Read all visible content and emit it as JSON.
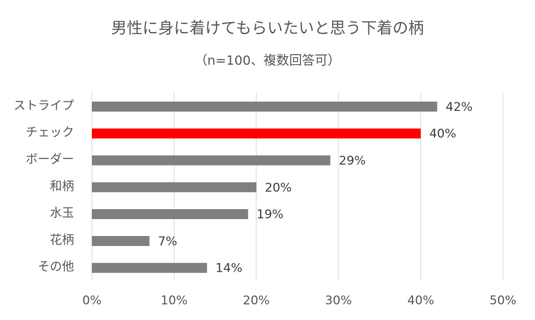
{
  "chart_data": {
    "type": "bar",
    "orientation": "horizontal",
    "title": "男性に身に着けてもらいたいと思う下着の柄",
    "subtitle": "（n=100、複数回答可）",
    "categories": [
      "ストライプ",
      "チェック",
      "ボーダー",
      "和柄",
      "水玉",
      "花柄",
      "その他"
    ],
    "values": [
      42,
      40,
      29,
      20,
      19,
      7,
      14
    ],
    "value_labels": [
      "42%",
      "40%",
      "29%",
      "20%",
      "19%",
      "7%",
      "14%"
    ],
    "highlight_index": 1,
    "xlim": [
      0,
      50
    ],
    "xticks": [
      0,
      10,
      20,
      30,
      40,
      50
    ],
    "xtick_labels": [
      "0%",
      "10%",
      "20%",
      "30%",
      "40%",
      "50%"
    ],
    "xlabel": "",
    "ylabel": "",
    "grid": "vertical",
    "legend": "none",
    "colors": {
      "bar": "#7f7f7f",
      "highlight": "#ff0000",
      "grid": "#d9d9d9",
      "text": "#595959"
    }
  }
}
